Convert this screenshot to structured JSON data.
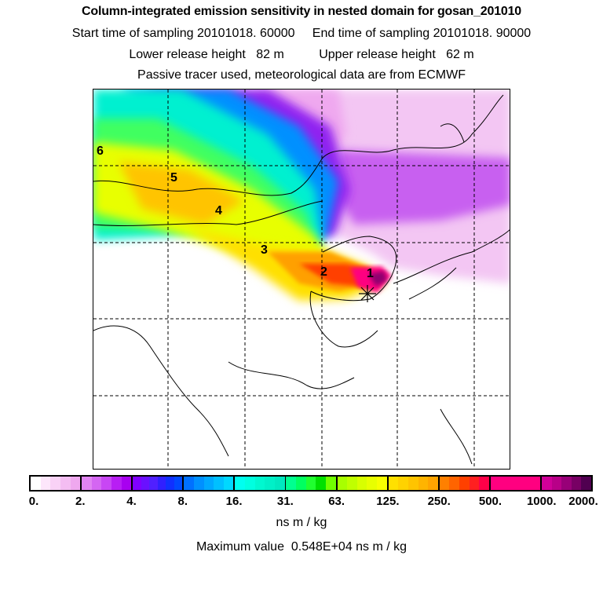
{
  "header": {
    "title": "Column-integrated emission sensitivity in nested domain for gosan_201010",
    "line2": "Start time of sampling 20101018. 60000     End time of sampling 20101018. 90000",
    "line3": "Lower release height   82 m          Upper release height   62 m",
    "line4": "Passive tracer used, meteorological data are from ECMWF"
  },
  "map": {
    "day_labels": [
      "1",
      "2",
      "3",
      "4",
      "5",
      "6"
    ],
    "release_marker": "star-marker"
  },
  "colorbar": {
    "tick_labels": [
      "0.",
      "2.",
      "4.",
      "8.",
      "16.",
      "31.",
      "63.",
      "125.",
      "250.",
      "500.",
      "1000.",
      "2000."
    ],
    "segments": [
      [
        "#ffffff",
        "#fde6fb",
        "#f9d2f6",
        "#f4bdf2",
        "#efa8ef"
      ],
      [
        "#e184f2",
        "#d466f2",
        "#c846f4",
        "#b81ef4",
        "#a800f0"
      ],
      [
        "#8000ff",
        "#6a10ff",
        "#5020ff",
        "#3020ff",
        "#1030ff",
        "#0048ff"
      ],
      [
        "#0070ff",
        "#0090ff",
        "#00a8ff",
        "#00c0ff",
        "#00d8ff"
      ],
      [
        "#00fff0",
        "#00ffe0",
        "#00f8d0",
        "#00f0c8",
        "#00e8c0"
      ],
      [
        "#00ff90",
        "#00ff60",
        "#20ff30",
        "#00e000",
        "#70ff00"
      ],
      [
        "#a8ff00",
        "#c0ff00",
        "#d8ff00",
        "#e8ff00",
        "#f8ff00"
      ],
      [
        "#ffe000",
        "#ffd200",
        "#ffc400",
        "#ffb400",
        "#ffa400"
      ],
      [
        "#ff8000",
        "#ff6400",
        "#ff4000",
        "#ff2020",
        "#ff0048"
      ],
      [
        "#ff0080",
        "#ff0080",
        "#ff0080",
        "#ff0080",
        "#ff0080"
      ],
      [
        "#d00098",
        "#b80088",
        "#980078",
        "#780064",
        "#500050"
      ]
    ],
    "units": "ns m / kg",
    "max_value": "Maximum value  0.548E+04 ns m / kg"
  },
  "chart_data": {
    "type": "heatmap",
    "title": "Column-integrated emission sensitivity in nested domain for gosan_201010",
    "colorbar_levels": [
      0,
      2,
      4,
      8,
      16,
      31,
      63,
      125,
      250,
      500,
      1000,
      2000
    ],
    "units": "ns m / kg",
    "maximum": 5480
  }
}
